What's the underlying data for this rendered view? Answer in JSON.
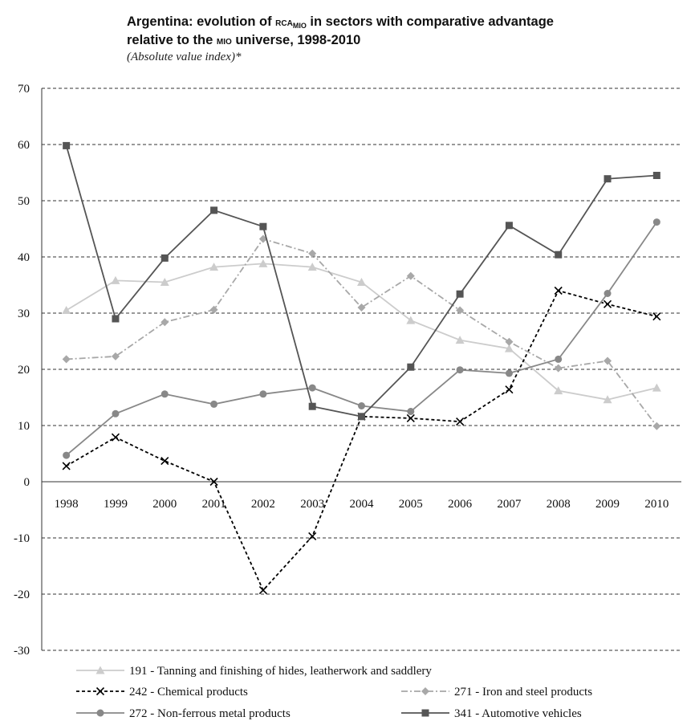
{
  "chart_data": {
    "type": "line",
    "title_parts": {
      "pre": "Argentina: evolution of ",
      "rca": "RCA",
      "rca_sub": "MIO",
      "mid": " in sectors with comparative advantage",
      "line2_pre": "relative to the ",
      "mio": "MIO",
      "line2_post": " universe, 1998-2010"
    },
    "subtitle": "(Absolute value index)*",
    "x": [
      "1998",
      "1999",
      "2000",
      "2001",
      "2002",
      "2003",
      "2004",
      "2005",
      "2006",
      "2007",
      "2008",
      "2009",
      "2010"
    ],
    "ylim": [
      -30,
      70
    ],
    "yticks": [
      -30,
      -20,
      -10,
      0,
      10,
      20,
      30,
      40,
      50,
      60,
      70
    ],
    "grid": true,
    "legend_position": "bottom",
    "series": [
      {
        "name": "191 - Tanning and finishing of hides, leatherwork and saddlery",
        "color": "#cccccc",
        "marker": "triangle",
        "dash": "",
        "values": [
          30.5,
          35.8,
          35.5,
          38.2,
          38.8,
          38.2,
          35.5,
          28.7,
          25.2,
          23.7,
          16.2,
          14.6,
          16.7
        ]
      },
      {
        "name": "242 - Chemical products",
        "color": "#000000",
        "marker": "x",
        "dash": "4,3",
        "values": [
          2.8,
          7.9,
          3.7,
          0.0,
          -19.3,
          -9.7,
          11.6,
          11.3,
          10.7,
          16.4,
          34.0,
          31.6,
          29.4
        ]
      },
      {
        "name": "271 - Iron and steel products",
        "color": "#a8a8a8",
        "marker": "diamond",
        "dash": "8,3,2,3",
        "values": [
          21.8,
          22.3,
          28.4,
          30.6,
          43.2,
          40.6,
          31.0,
          36.6,
          30.5,
          24.9,
          20.2,
          21.5,
          9.9
        ]
      },
      {
        "name": "272 - Non-ferrous metal products",
        "color": "#888888",
        "marker": "circle",
        "dash": "",
        "values": [
          4.7,
          12.1,
          15.6,
          13.8,
          15.6,
          16.7,
          13.5,
          12.5,
          19.9,
          19.3,
          21.8,
          33.5,
          46.2
        ]
      },
      {
        "name": "341 - Automotive vehicles",
        "color": "#555555",
        "marker": "square",
        "dash": "",
        "values": [
          59.8,
          29.0,
          39.8,
          48.3,
          45.4,
          13.4,
          11.6,
          20.4,
          33.4,
          45.6,
          40.4,
          53.9,
          54.5
        ]
      }
    ]
  }
}
